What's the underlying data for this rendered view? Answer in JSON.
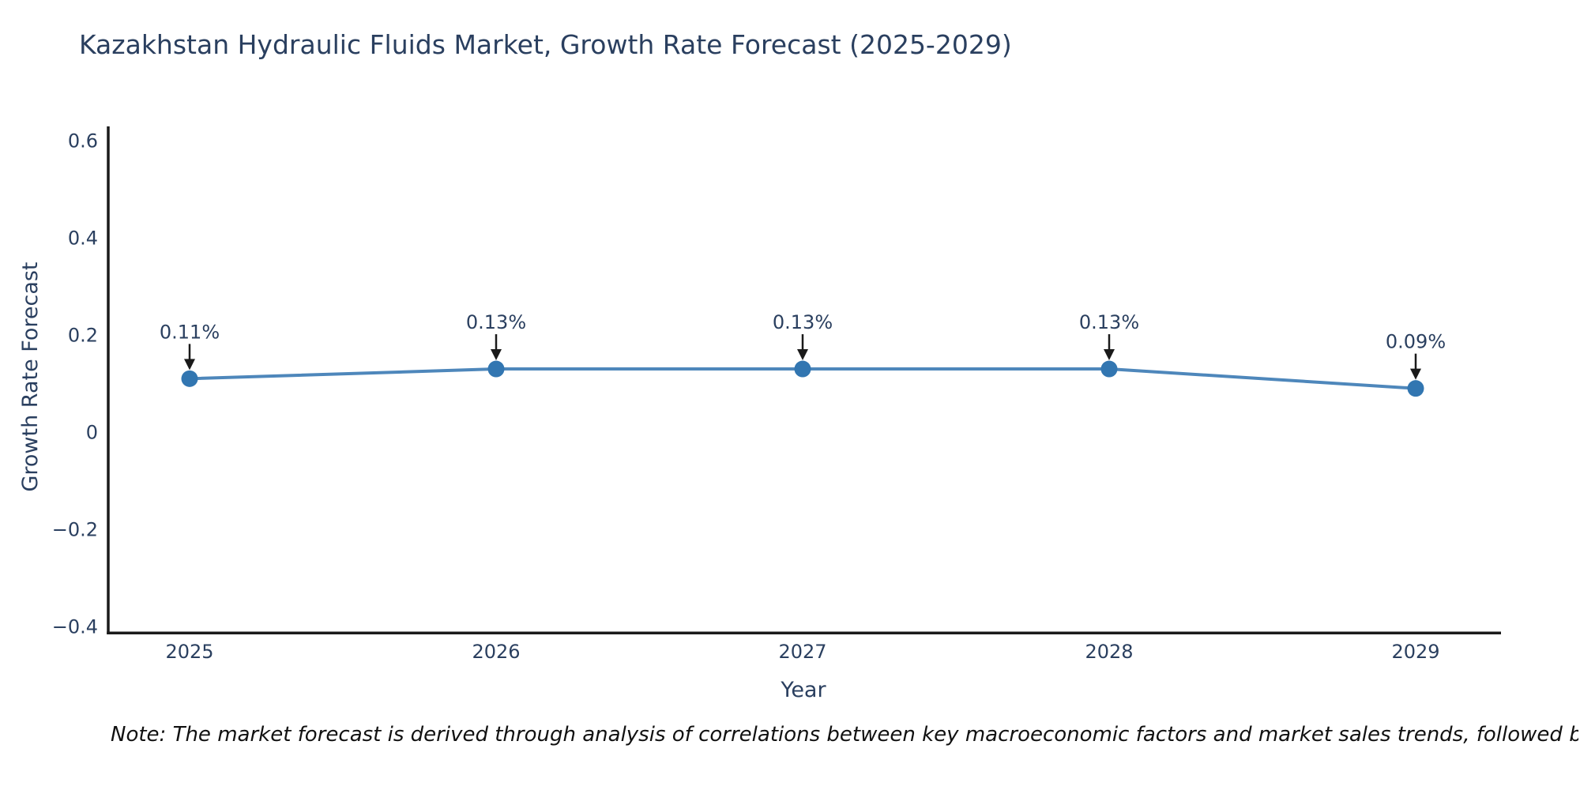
{
  "note": "Note: The market forecast is derived through analysis of correlations between key macroeconomic factors and market sales trends, followed by predictive modeling to project future sales",
  "chart_data": {
    "type": "line",
    "title": "Kazakhstan Hydraulic Fluids Market, Growth Rate Forecast (2025-2029)",
    "xlabel": "Year",
    "ylabel": "Growth Rate Forecast",
    "categories": [
      "2025",
      "2026",
      "2027",
      "2028",
      "2029"
    ],
    "series": [
      {
        "name": "Growth Rate Forecast",
        "values": [
          0.11,
          0.13,
          0.13,
          0.13,
          0.09
        ],
        "point_labels": [
          "0.11%",
          "0.13%",
          "0.13%",
          "0.13%",
          "0.09%"
        ]
      }
    ],
    "ylim": [
      -0.42,
      0.63
    ],
    "y_tick_values": [
      0.6,
      0.4,
      0.2,
      0,
      -0.2,
      -0.4
    ],
    "y_tick_labels": [
      "0.6",
      "0.4",
      "0.2",
      "0",
      "−0.2",
      "−0.4"
    ],
    "grid": false,
    "legend_position": "none",
    "annotations": "value labels with down arrows above each data point",
    "colors": {
      "line": "#4e87bb",
      "marker": "#3276b1",
      "axis": "#1a1a1a",
      "text": "#2a3f5f",
      "arrow": "#1a1a1a",
      "background": "#ffffff"
    }
  }
}
